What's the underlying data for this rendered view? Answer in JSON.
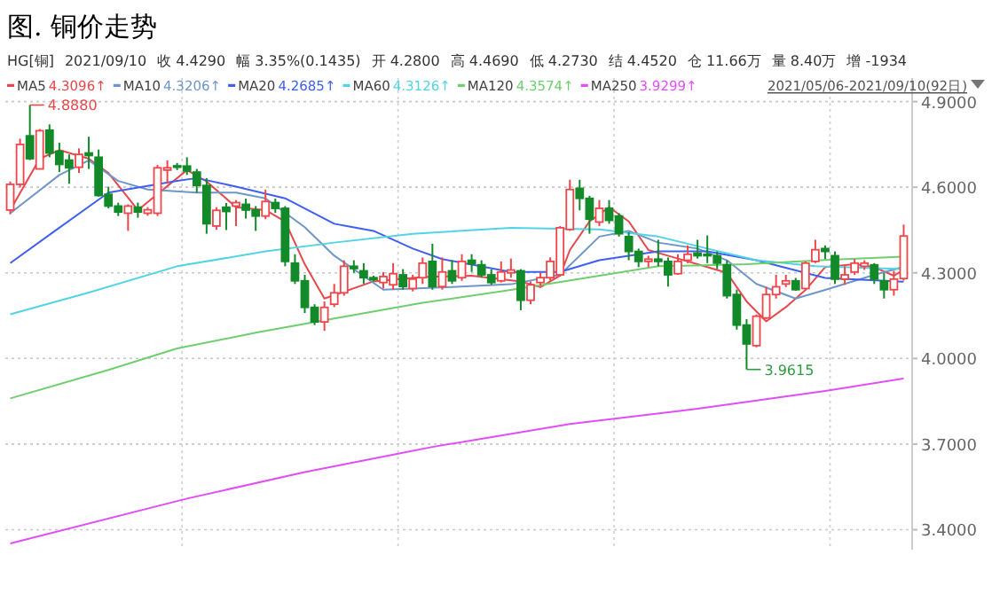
{
  "chart_data": {
    "type": "candlestick",
    "title": "图. 铜价走势",
    "annotations": [
      "HG[铜]",
      "2021/09/10",
      "收 4.4290",
      "幅 3.35%(0.1435)",
      "开 4.2800",
      "高 4.4690",
      "低 4.2730",
      "结 4.4520",
      "仓 11.66万",
      "量 8.40万",
      "增 -1934",
      "4.3096↑",
      "4.3206↑",
      "4.2685↑",
      "4.3126↑",
      "4.3574↑",
      "3.9299↑",
      "2021/05/06-2021/09/10(92日)",
      "4.8880",
      "3.9615"
    ],
    "categories": [
      null,
      null,
      null,
      null,
      null,
      null,
      null,
      null,
      null,
      null,
      null,
      null,
      null,
      null,
      null,
      null,
      null,
      null,
      null,
      null,
      null,
      null,
      null,
      null,
      null,
      null,
      null,
      null,
      null,
      null,
      null,
      null,
      null,
      null,
      null,
      null,
      null,
      null,
      null,
      null,
      null,
      null,
      null,
      null,
      null,
      null,
      null,
      null,
      null,
      null,
      null,
      null,
      null,
      null,
      null,
      null,
      null,
      null,
      null,
      null,
      null,
      null,
      null,
      null,
      null,
      null,
      null,
      null,
      null,
      null,
      null,
      null,
      null,
      null,
      null,
      null,
      null,
      null,
      null,
      null,
      null,
      null,
      null,
      null,
      null,
      null,
      null,
      null,
      null,
      null,
      null,
      null
    ],
    "ohlc": [
      [
        4.52,
        4.62,
        4.505,
        4.61
      ],
      [
        4.61,
        4.77,
        4.6,
        4.75
      ],
      [
        4.78,
        4.888,
        4.695,
        4.7
      ],
      [
        4.664,
        4.804,
        4.664,
        4.798
      ],
      [
        4.8,
        4.82,
        4.705,
        4.72
      ],
      [
        4.726,
        4.756,
        4.653,
        4.68
      ],
      [
        4.695,
        4.715,
        4.612,
        4.668
      ],
      [
        4.67,
        4.736,
        4.65,
        4.715
      ],
      [
        4.72,
        4.777,
        4.664,
        4.711
      ],
      [
        4.705,
        4.732,
        4.567,
        4.571
      ],
      [
        4.575,
        4.602,
        4.526,
        4.534
      ],
      [
        4.534,
        4.546,
        4.499,
        4.513
      ],
      [
        4.509,
        4.54,
        4.447,
        4.534
      ],
      [
        4.53,
        4.546,
        4.493,
        4.513
      ],
      [
        4.509,
        4.53,
        4.5,
        4.521
      ],
      [
        4.509,
        4.678,
        4.499,
        4.668
      ],
      [
        4.66,
        4.694,
        4.612,
        4.668
      ],
      [
        4.675,
        4.685,
        4.66,
        4.67
      ],
      [
        4.674,
        4.705,
        4.643,
        4.657
      ],
      [
        4.653,
        4.664,
        4.581,
        4.606
      ],
      [
        4.606,
        4.632,
        4.437,
        4.472
      ],
      [
        4.464,
        4.53,
        4.451,
        4.519
      ],
      [
        4.53,
        4.545,
        4.45,
        4.515
      ],
      [
        4.534,
        4.555,
        4.464,
        4.546
      ],
      [
        4.54,
        4.56,
        4.49,
        4.52
      ],
      [
        4.52,
        4.534,
        4.447,
        4.499
      ],
      [
        4.499,
        4.592,
        4.488,
        4.55
      ],
      [
        4.546,
        4.56,
        4.51,
        4.526
      ],
      [
        4.526,
        4.534,
        4.323,
        4.34
      ],
      [
        4.334,
        4.365,
        4.261,
        4.272
      ],
      [
        4.272,
        4.293,
        4.159,
        4.179
      ],
      [
        4.179,
        4.19,
        4.117,
        4.128
      ],
      [
        4.128,
        4.2,
        4.097,
        4.179
      ],
      [
        4.19,
        4.261,
        4.18,
        4.23
      ],
      [
        4.23,
        4.344,
        4.22,
        4.323
      ],
      [
        4.323,
        4.344,
        4.3,
        4.315
      ],
      [
        4.307,
        4.334,
        4.261,
        4.283
      ],
      [
        4.283,
        4.29,
        4.27,
        4.276
      ],
      [
        4.266,
        4.303,
        4.245,
        4.287
      ],
      [
        4.258,
        4.334,
        4.241,
        4.297
      ],
      [
        4.293,
        4.313,
        4.241,
        4.252
      ],
      [
        4.245,
        4.293,
        4.235,
        4.278
      ],
      [
        4.283,
        4.354,
        4.261,
        4.334
      ],
      [
        4.34,
        4.402,
        4.241,
        4.252
      ],
      [
        4.252,
        4.354,
        4.241,
        4.303
      ],
      [
        4.307,
        4.344,
        4.261,
        4.272
      ],
      [
        4.283,
        4.365,
        4.272,
        4.34
      ],
      [
        4.344,
        4.365,
        4.303,
        4.332
      ],
      [
        4.328,
        4.344,
        4.283,
        4.293
      ],
      [
        4.293,
        4.313,
        4.258,
        4.266
      ],
      [
        4.272,
        4.34,
        4.266,
        4.303
      ],
      [
        4.3,
        4.35,
        4.283,
        4.31
      ],
      [
        4.307,
        4.313,
        4.169,
        4.204
      ],
      [
        4.204,
        4.27,
        4.19,
        4.258
      ],
      [
        4.266,
        4.3,
        4.255,
        4.283
      ],
      [
        4.283,
        4.354,
        4.272,
        4.34
      ],
      [
        4.293,
        4.464,
        4.287,
        4.458
      ],
      [
        4.452,
        4.626,
        4.447,
        4.592
      ],
      [
        4.596,
        4.626,
        4.519,
        4.561
      ],
      [
        4.561,
        4.57,
        4.437,
        4.488
      ],
      [
        4.478,
        4.555,
        4.464,
        4.526
      ],
      [
        4.526,
        4.555,
        4.472,
        4.484
      ],
      [
        4.499,
        4.509,
        4.427,
        4.437
      ],
      [
        4.427,
        4.443,
        4.344,
        4.375
      ],
      [
        4.375,
        4.385,
        4.32,
        4.34
      ],
      [
        4.34,
        4.36,
        4.32,
        4.348
      ],
      [
        4.348,
        4.416,
        4.323,
        4.34
      ],
      [
        4.34,
        4.354,
        4.252,
        4.293
      ],
      [
        4.297,
        4.365,
        4.293,
        4.34
      ],
      [
        4.344,
        4.396,
        4.334,
        4.365
      ],
      [
        4.369,
        4.416,
        4.35,
        4.36
      ],
      [
        4.365,
        4.431,
        4.334,
        4.36
      ],
      [
        4.36,
        4.375,
        4.313,
        4.334
      ],
      [
        4.328,
        4.344,
        4.21,
        4.22
      ],
      [
        4.224,
        4.241,
        4.101,
        4.117
      ],
      [
        4.117,
        4.138,
        3.9615,
        4.051
      ],
      [
        4.045,
        4.154,
        4.039,
        4.148
      ],
      [
        4.142,
        4.251,
        4.138,
        4.224
      ],
      [
        4.224,
        4.293,
        4.21,
        4.251
      ],
      [
        4.261,
        4.293,
        4.25,
        4.272
      ],
      [
        4.272,
        4.282,
        4.237,
        4.241
      ],
      [
        4.245,
        4.34,
        4.241,
        4.334
      ],
      [
        4.34,
        4.416,
        4.334,
        4.381
      ],
      [
        4.385,
        4.396,
        4.348,
        4.375
      ],
      [
        4.36,
        4.375,
        4.261,
        4.278
      ],
      [
        4.278,
        4.323,
        4.258,
        4.293
      ],
      [
        4.303,
        4.348,
        4.293,
        4.334
      ],
      [
        4.323,
        4.344,
        4.31,
        4.334
      ],
      [
        4.328,
        4.334,
        4.261,
        4.278
      ],
      [
        4.272,
        4.299,
        4.21,
        4.241
      ],
      [
        4.241,
        4.307,
        4.22,
        4.278
      ],
      [
        4.28,
        4.469,
        4.273,
        4.429
      ]
    ],
    "series": [
      {
        "name": "MA5",
        "type": "line",
        "color": "#e8474b",
        "values": [
          4.52,
          null,
          null,
          4.7,
          null,
          4.73,
          null,
          null,
          4.7,
          null,
          4.65,
          null,
          null,
          4.52,
          null,
          null,
          null,
          null,
          4.66,
          null,
          4.62,
          null,
          null,
          4.53,
          null,
          null,
          4.52,
          null,
          4.48,
          null,
          4.33,
          null,
          4.21,
          null,
          null,
          null,
          null,
          4.27,
          null,
          null,
          null,
          null,
          4.285,
          null,
          null,
          null,
          null,
          4.29,
          null,
          null,
          null,
          null,
          4.27,
          null,
          4.25,
          null,
          4.29,
          4.38,
          null,
          4.48,
          null,
          4.53,
          null,
          4.48,
          null,
          4.38,
          null,
          null,
          4.35,
          null,
          4.33,
          null,
          null,
          4.3,
          null,
          4.2,
          null,
          4.13,
          null,
          4.18,
          null,
          4.24,
          null,
          4.32,
          null,
          null,
          4.33,
          null,
          4.32,
          null,
          4.29,
          4.31
        ]
      },
      {
        "name": "MA10",
        "type": "line",
        "color": "#6f96c8",
        "values": [
          4.509,
          null,
          null,
          null,
          null,
          4.643,
          null,
          null,
          4.694,
          null,
          null,
          4.622,
          null,
          null,
          4.592,
          null,
          null,
          null,
          null,
          4.581,
          null,
          null,
          null,
          4.581,
          null,
          null,
          4.561,
          null,
          null,
          null,
          4.46,
          null,
          null,
          4.36,
          null,
          null,
          null,
          null,
          4.241,
          null,
          null,
          null,
          null,
          null,
          null,
          4.25,
          null,
          null,
          null,
          null,
          null,
          4.26,
          null,
          null,
          null,
          null,
          4.293,
          null,
          null,
          null,
          4.427,
          null,
          null,
          4.447,
          null,
          null,
          4.406,
          null,
          null,
          null,
          4.385,
          null,
          null,
          4.344,
          null,
          null,
          4.261,
          null,
          null,
          null,
          4.21,
          null,
          null,
          4.24,
          null,
          null,
          null,
          null,
          4.293,
          null,
          null,
          4.321
        ]
      },
      {
        "name": "MA20",
        "type": "line",
        "color": "#3f5ff0",
        "values": [
          4.334,
          null,
          null,
          null,
          null,
          4.458,
          null,
          null,
          null,
          null,
          4.581,
          null,
          null,
          null,
          null,
          null,
          null,
          4.622,
          null,
          4.632,
          null,
          null,
          null,
          4.602,
          null,
          null,
          null,
          null,
          4.561,
          null,
          null,
          null,
          null,
          4.472,
          null,
          null,
          null,
          4.447,
          null,
          null,
          null,
          4.385,
          null,
          null,
          4.348,
          null,
          null,
          null,
          null,
          null,
          null,
          4.303,
          null,
          null,
          null,
          null,
          4.303,
          null,
          null,
          null,
          4.344,
          null,
          null,
          null,
          null,
          null,
          4.375,
          null,
          null,
          null,
          null,
          4.375,
          null,
          null,
          null,
          null,
          4.344,
          null,
          null,
          null,
          null,
          null,
          null,
          4.282,
          null,
          null,
          null,
          null,
          null,
          null,
          null,
          4.269
        ]
      },
      {
        "name": "MA60",
        "type": "line",
        "color": "#52d3e6",
        "values": [
          4.155,
          null,
          null,
          null,
          null,
          null,
          null,
          null,
          4.231,
          null,
          null,
          null,
          null,
          null,
          null,
          null,
          null,
          4.323,
          null,
          null,
          null,
          null,
          null,
          null,
          null,
          null,
          4.375,
          null,
          null,
          null,
          null,
          null,
          null,
          4.406,
          null,
          null,
          null,
          null,
          null,
          null,
          null,
          4.437,
          null,
          null,
          null,
          null,
          null,
          null,
          null,
          null,
          null,
          4.458,
          null,
          null,
          null,
          null,
          null,
          null,
          null,
          null,
          4.452,
          null,
          null,
          null,
          null,
          null,
          4.427,
          null,
          null,
          null,
          null,
          4.385,
          null,
          null,
          null,
          null,
          4.344,
          null,
          null,
          null,
          null,
          null,
          4.323,
          null,
          null,
          null,
          null,
          null,
          null,
          null,
          null,
          4.313
        ]
      },
      {
        "name": "MA120",
        "type": "line",
        "color": "#6fcf6f",
        "values": [
          3.86,
          null,
          null,
          null,
          null,
          null,
          null,
          null,
          null,
          null,
          3.96,
          null,
          null,
          null,
          null,
          null,
          null,
          4.035,
          null,
          null,
          null,
          null,
          null,
          null,
          null,
          4.09,
          null,
          null,
          null,
          null,
          null,
          null,
          null,
          4.14,
          null,
          null,
          null,
          null,
          null,
          null,
          null,
          null,
          4.195,
          null,
          null,
          null,
          null,
          null,
          null,
          null,
          null,
          4.24,
          null,
          null,
          null,
          null,
          null,
          null,
          null,
          null,
          4.29,
          null,
          null,
          null,
          null,
          null,
          4.323,
          null,
          null,
          null,
          null,
          null,
          null,
          null,
          null,
          4.33,
          null,
          null,
          null,
          null,
          null,
          null,
          null,
          4.345,
          null,
          null,
          null,
          null,
          null,
          null,
          null,
          4.357
        ]
      },
      {
        "name": "MA250",
        "type": "line",
        "color": "#e04ef5",
        "values": [
          3.352,
          null,
          null,
          null,
          null,
          null,
          null,
          null,
          null,
          null,
          null,
          null,
          null,
          null,
          null,
          null,
          null,
          null,
          3.509,
          null,
          null,
          null,
          null,
          null,
          null,
          null,
          null,
          null,
          null,
          null,
          3.602,
          null,
          null,
          null,
          null,
          null,
          null,
          null,
          null,
          null,
          null,
          null,
          null,
          3.69,
          null,
          null,
          null,
          null,
          null,
          null,
          null,
          null,
          null,
          null,
          null,
          null,
          null,
          3.77,
          null,
          null,
          null,
          null,
          null,
          null,
          null,
          null,
          null,
          null,
          null,
          null,
          3.824,
          null,
          null,
          null,
          null,
          null,
          null,
          null,
          null,
          null,
          null,
          null,
          null,
          3.886,
          null,
          null,
          null,
          null,
          null,
          null,
          null,
          3.93
        ]
      }
    ],
    "ylim": [
      3.33,
      4.9
    ],
    "yticks": [
      {
        "value": 3.4,
        "label": "3.4000"
      },
      {
        "value": 3.7,
        "label": "3.7000"
      },
      {
        "value": 4.0,
        "label": "4.0000"
      },
      {
        "value": 4.3,
        "label": "4.3000"
      },
      {
        "value": 4.6,
        "label": "4.6000"
      },
      {
        "value": 4.9,
        "label": "4.9000"
      }
    ],
    "grid": "y",
    "legend": "top left",
    "tick_labels": "y"
  }
}
